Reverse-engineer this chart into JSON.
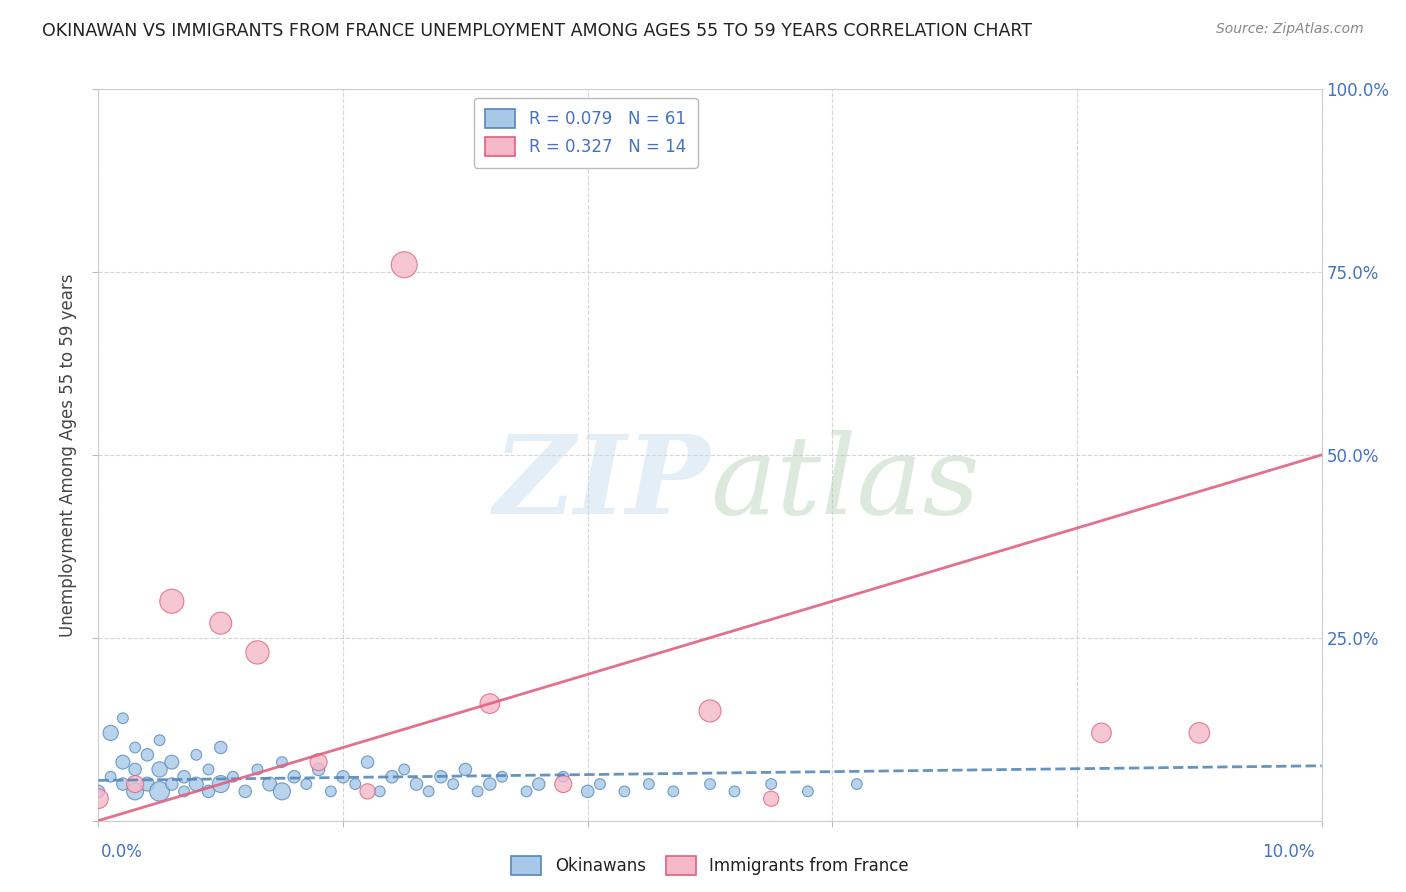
{
  "title": "OKINAWAN VS IMMIGRANTS FROM FRANCE UNEMPLOYMENT AMONG AGES 55 TO 59 YEARS CORRELATION CHART",
  "source": "Source: ZipAtlas.com",
  "ylabel": "Unemployment Among Ages 55 to 59 years",
  "legend_label1": "Okinawans",
  "legend_label2": "Immigrants from France",
  "blue_color": "#a8c8e8",
  "pink_color": "#f5b8c8",
  "blue_line_color": "#5588bb",
  "pink_line_color": "#e06080",
  "R1": 0.079,
  "N1": 61,
  "R2": 0.327,
  "N2": 14,
  "x_lim": [
    0,
    0.1
  ],
  "y_lim": [
    0,
    1.0
  ],
  "y_tick_vals": [
    0.0,
    0.25,
    0.5,
    0.75,
    1.0
  ],
  "y_tick_labels": [
    "",
    "25.0%",
    "50.0%",
    "75.0%",
    "100.0%"
  ],
  "blue_x": [
    0.0,
    0.001,
    0.001,
    0.002,
    0.002,
    0.002,
    0.003,
    0.003,
    0.003,
    0.004,
    0.004,
    0.005,
    0.005,
    0.005,
    0.006,
    0.006,
    0.007,
    0.007,
    0.008,
    0.008,
    0.009,
    0.009,
    0.01,
    0.01,
    0.011,
    0.012,
    0.013,
    0.014,
    0.015,
    0.015,
    0.016,
    0.017,
    0.018,
    0.019,
    0.02,
    0.021,
    0.022,
    0.023,
    0.024,
    0.025,
    0.026,
    0.027,
    0.028,
    0.029,
    0.03,
    0.031,
    0.032,
    0.033,
    0.035,
    0.036,
    0.038,
    0.04,
    0.041,
    0.043,
    0.045,
    0.047,
    0.05,
    0.052,
    0.055,
    0.058,
    0.062
  ],
  "blue_y": [
    0.04,
    0.06,
    0.12,
    0.05,
    0.08,
    0.14,
    0.04,
    0.07,
    0.1,
    0.05,
    0.09,
    0.04,
    0.07,
    0.11,
    0.05,
    0.08,
    0.04,
    0.06,
    0.05,
    0.09,
    0.04,
    0.07,
    0.05,
    0.1,
    0.06,
    0.04,
    0.07,
    0.05,
    0.04,
    0.08,
    0.06,
    0.05,
    0.07,
    0.04,
    0.06,
    0.05,
    0.08,
    0.04,
    0.06,
    0.07,
    0.05,
    0.04,
    0.06,
    0.05,
    0.07,
    0.04,
    0.05,
    0.06,
    0.04,
    0.05,
    0.06,
    0.04,
    0.05,
    0.04,
    0.05,
    0.04,
    0.05,
    0.04,
    0.05,
    0.04,
    0.05
  ],
  "blue_sizes": [
    80,
    60,
    120,
    80,
    100,
    60,
    150,
    80,
    60,
    100,
    80,
    200,
    120,
    60,
    80,
    100,
    60,
    80,
    100,
    60,
    80,
    60,
    150,
    80,
    60,
    80,
    60,
    100,
    150,
    60,
    80,
    60,
    80,
    60,
    80,
    60,
    80,
    60,
    80,
    60,
    80,
    60,
    80,
    60,
    80,
    60,
    80,
    60,
    60,
    80,
    60,
    80,
    60,
    60,
    60,
    60,
    60,
    60,
    60,
    60,
    60
  ],
  "pink_x": [
    0.0,
    0.003,
    0.006,
    0.01,
    0.013,
    0.018,
    0.022,
    0.025,
    0.032,
    0.038,
    0.05,
    0.055,
    0.082,
    0.09
  ],
  "pink_y": [
    0.03,
    0.05,
    0.3,
    0.27,
    0.23,
    0.08,
    0.04,
    0.76,
    0.16,
    0.05,
    0.15,
    0.03,
    0.12,
    0.12
  ],
  "pink_sizes": [
    200,
    150,
    300,
    250,
    280,
    150,
    120,
    350,
    200,
    150,
    250,
    120,
    200,
    220
  ],
  "blue_line_x": [
    0.0,
    0.1
  ],
  "blue_line_y": [
    0.055,
    0.075
  ],
  "pink_line_x": [
    0.0,
    0.1
  ],
  "pink_line_y": [
    0.0,
    0.5
  ]
}
